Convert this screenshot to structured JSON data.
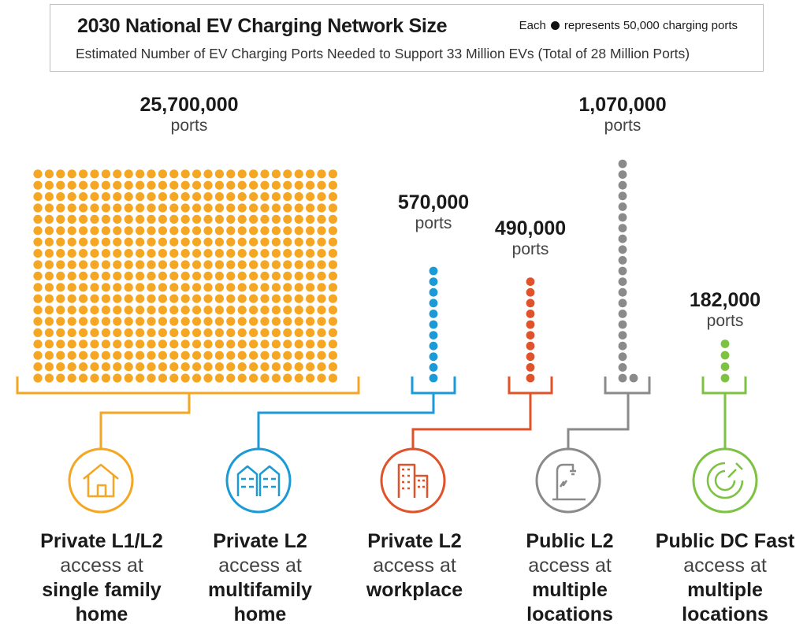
{
  "header": {
    "title": "2030 National EV Charging Network Size",
    "legend_prefix": "Each",
    "legend_suffix": "represents 50,000 charging ports",
    "subtitle": "Estimated Number of EV Charging Ports Needed to Support 33 Million EVs (Total of 28 Million Ports)"
  },
  "chart_data": {
    "type": "bar",
    "title": "2030 National EV Charging Network Size",
    "subtitle": "Estimated Number of EV Charging Ports Needed to Support 33 Million EVs (Total of 28 Million Ports)",
    "unit_per_dot": 50000,
    "unit_label": "ports",
    "categories": [
      {
        "name": "Private L1/L2",
        "l2": "access at",
        "l3": "single family",
        "l4": "home",
        "value": 25700000,
        "value_label": "25,700,000",
        "color": "#f5a623",
        "icon": "house-icon"
      },
      {
        "name": "Private L2",
        "l2": "access at",
        "l3": "multifamily",
        "l4": "home",
        "value": 570000,
        "value_label": "570,000",
        "color": "#1b9ad6",
        "icon": "apartment-building-icon"
      },
      {
        "name": "Private L2",
        "l2": "access at",
        "l3": "workplace",
        "l4": "",
        "value": 490000,
        "value_label": "490,000",
        "color": "#e0522a",
        "icon": "office-building-icon"
      },
      {
        "name": "Public L2",
        "l2": "access at",
        "l3": "multiple",
        "l4": "locations",
        "value": 1070000,
        "value_label": "1,070,000",
        "color": "#8a8a8a",
        "icon": "ev-charger-icon"
      },
      {
        "name": "Public DC Fast",
        "l2": "access at",
        "l3": "multiple",
        "l4": "locations",
        "value": 182000,
        "value_label": "182,000",
        "color": "#7dc242",
        "icon": "fast-charge-gauge-icon"
      }
    ]
  }
}
